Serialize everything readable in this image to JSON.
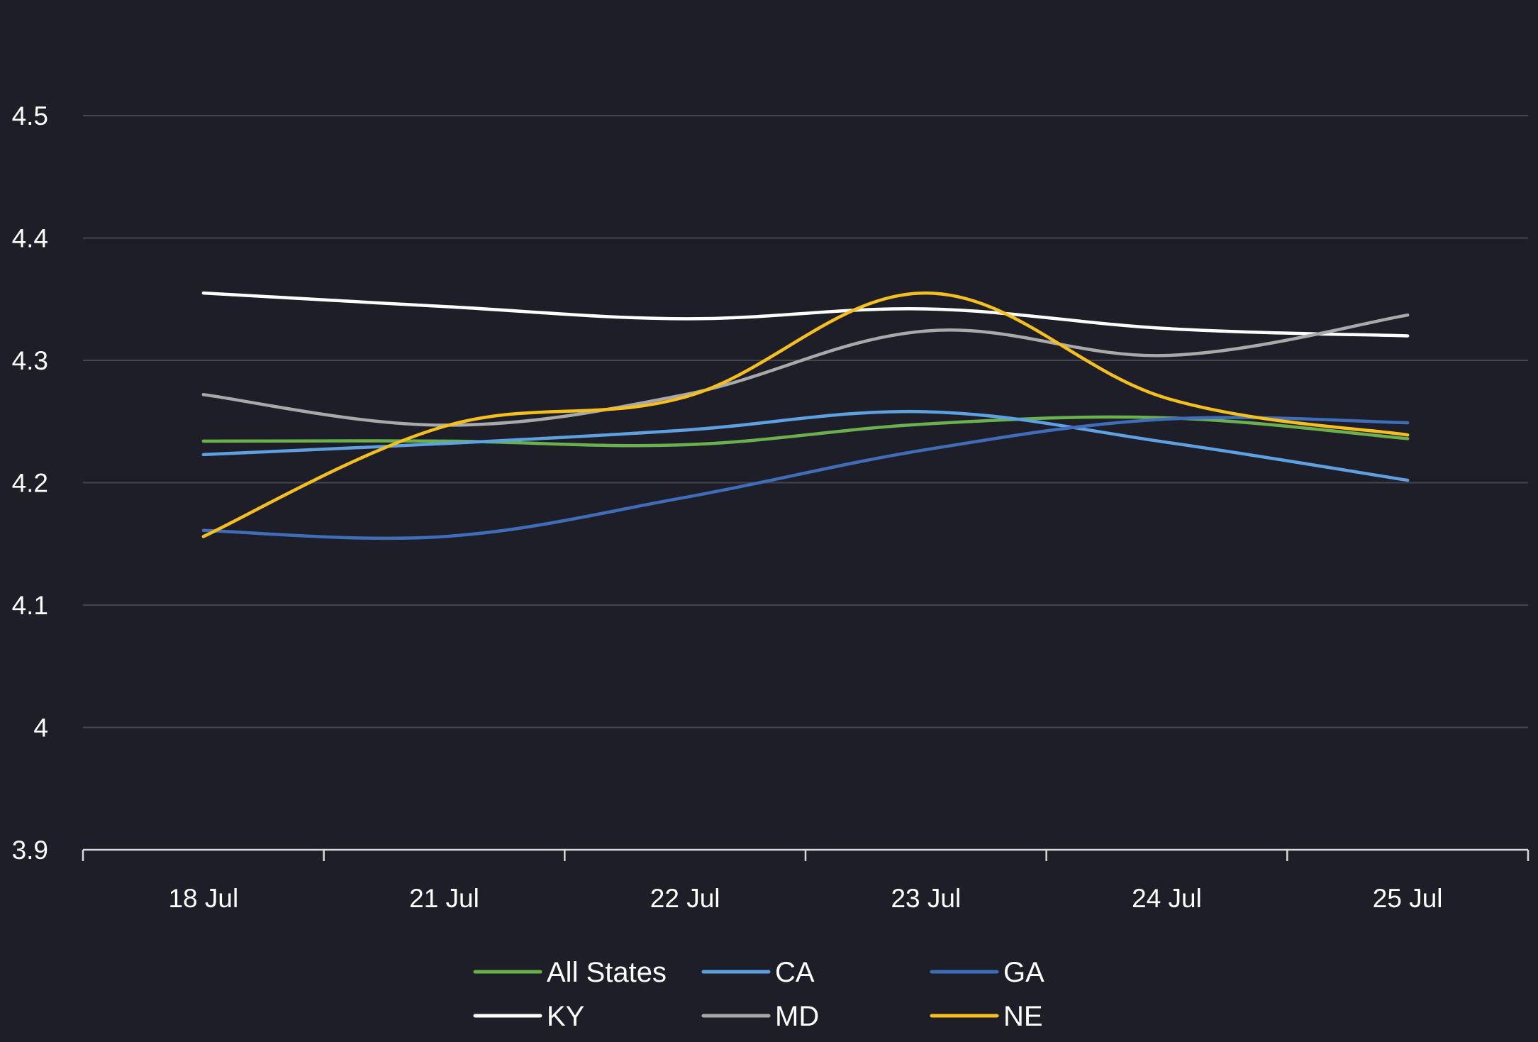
{
  "chart_data": {
    "type": "line",
    "categories": [
      "18 Jul",
      "21 Jul",
      "22 Jul",
      "23 Jul",
      "24 Jul",
      "25 Jul"
    ],
    "ylim": [
      3.9,
      4.5
    ],
    "yticks": [
      "3.9",
      "4",
      "4.1",
      "4.2",
      "4.3",
      "4.4",
      "4.5"
    ],
    "grid": true,
    "legend_position": "bottom",
    "series": [
      {
        "name": "All States",
        "color": "#6ab04c",
        "values": [
          4.234,
          4.234,
          4.231,
          4.248,
          4.253,
          4.236
        ]
      },
      {
        "name": "CA",
        "color": "#5ea1e0",
        "values": [
          4.223,
          4.232,
          4.243,
          4.258,
          4.233,
          4.202
        ]
      },
      {
        "name": "GA",
        "color": "#3f6db8",
        "values": [
          4.161,
          4.156,
          4.188,
          4.227,
          4.252,
          4.249
        ]
      },
      {
        "name": "KY",
        "color": "#ffffff",
        "values": [
          4.355,
          4.344,
          4.334,
          4.342,
          4.326,
          4.32
        ]
      },
      {
        "name": "MD",
        "color": "#a9a9a9",
        "values": [
          4.272,
          4.247,
          4.272,
          4.324,
          4.304,
          4.337
        ]
      },
      {
        "name": "NE",
        "color": "#f5c01e",
        "values": [
          4.156,
          4.246,
          4.27,
          4.355,
          4.269,
          4.239
        ]
      }
    ]
  }
}
